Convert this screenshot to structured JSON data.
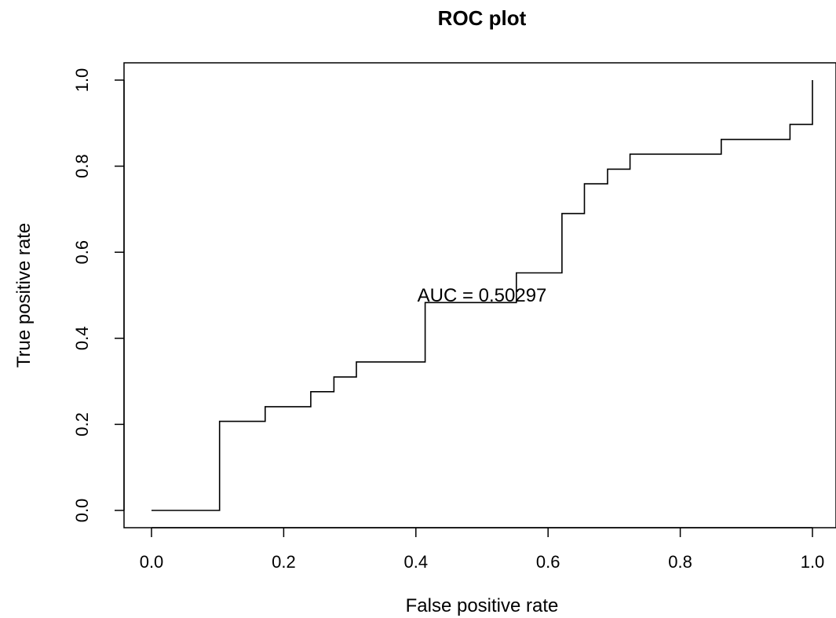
{
  "chart_data": {
    "type": "line",
    "title": "ROC plot",
    "xlabel": "False positive rate",
    "ylabel": "True positive rate",
    "xlim": [
      0,
      1
    ],
    "ylim": [
      0,
      1
    ],
    "x_ticks": [
      "0.0",
      "0.2",
      "0.4",
      "0.6",
      "0.8",
      "1.0"
    ],
    "y_ticks": [
      "0.0",
      "0.2",
      "0.4",
      "0.6",
      "0.8",
      "1.0"
    ],
    "grid": false,
    "annotation": "AUC =  0.50297",
    "annotation_position": {
      "x": 0.5,
      "y": 0.5
    },
    "series": [
      {
        "x": [
          0.0,
          0.103,
          0.103,
          0.172,
          0.172,
          0.241,
          0.241,
          0.276,
          0.276,
          0.31,
          0.31,
          0.414,
          0.414,
          0.552,
          0.552,
          0.621,
          0.621,
          0.655,
          0.655,
          0.69,
          0.69,
          0.724,
          0.724,
          0.862,
          0.862,
          0.966,
          0.966,
          1.0,
          1.0
        ],
        "y": [
          0.0,
          0.0,
          0.207,
          0.207,
          0.241,
          0.241,
          0.276,
          0.276,
          0.31,
          0.31,
          0.345,
          0.345,
          0.483,
          0.483,
          0.552,
          0.552,
          0.69,
          0.69,
          0.759,
          0.759,
          0.793,
          0.793,
          0.828,
          0.828,
          0.862,
          0.862,
          0.897,
          0.897,
          1.0
        ]
      }
    ]
  }
}
